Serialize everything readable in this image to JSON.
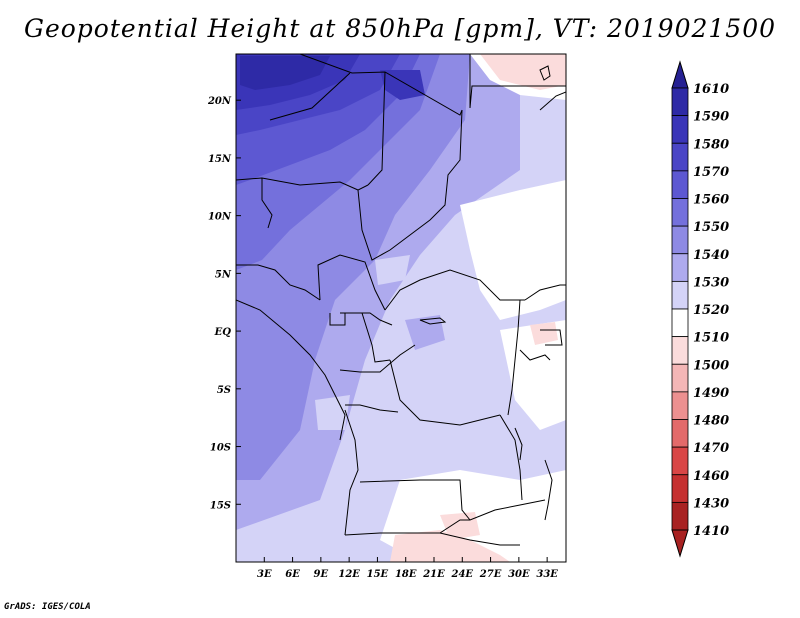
{
  "title": "Geopotential Height at 850hPa [gpm], VT: 2019021500",
  "credit": "GrADS: IGES/COLA",
  "map": {
    "lon_range": [
      0,
      35
    ],
    "lat_range": [
      -20,
      24
    ],
    "x_ticks": [
      {
        "value": 3,
        "label": "3E"
      },
      {
        "value": 6,
        "label": "6E"
      },
      {
        "value": 9,
        "label": "9E"
      },
      {
        "value": 12,
        "label": "12E"
      },
      {
        "value": 15,
        "label": "15E"
      },
      {
        "value": 18,
        "label": "18E"
      },
      {
        "value": 21,
        "label": "21E"
      },
      {
        "value": 24,
        "label": "24E"
      },
      {
        "value": 27,
        "label": "27E"
      },
      {
        "value": 30,
        "label": "30E"
      },
      {
        "value": 33,
        "label": "33E"
      }
    ],
    "y_ticks": [
      {
        "value": 20,
        "label": "20N"
      },
      {
        "value": 15,
        "label": "15N"
      },
      {
        "value": 10,
        "label": "10N"
      },
      {
        "value": 5,
        "label": "5N"
      },
      {
        "value": 0,
        "label": "EQ"
      },
      {
        "value": -5,
        "label": "5S"
      },
      {
        "value": -10,
        "label": "10S"
      },
      {
        "value": -15,
        "label": "15S"
      }
    ]
  },
  "colorbar": {
    "levels": [
      {
        "label": "1610",
        "color": "#262193"
      },
      {
        "label": "1590",
        "color": "#2e2aa6"
      },
      {
        "label": "1580",
        "color": "#3a35b8"
      },
      {
        "label": "1570",
        "color": "#4a45c6"
      },
      {
        "label": "1560",
        "color": "#5d58d2"
      },
      {
        "label": "1550",
        "color": "#7470dc"
      },
      {
        "label": "1540",
        "color": "#8e8ae4"
      },
      {
        "label": "1530",
        "color": "#aeaaee"
      },
      {
        "label": "1520",
        "color": "#d4d3f7"
      },
      {
        "label": "1510",
        "color": "#ffffff"
      },
      {
        "label": "1500",
        "color": "#fbdcdc"
      },
      {
        "label": "1490",
        "color": "#f4b6b6"
      },
      {
        "label": "1480",
        "color": "#ec9090"
      },
      {
        "label": "1470",
        "color": "#e36a6a"
      },
      {
        "label": "1460",
        "color": "#d94646"
      },
      {
        "label": "1430",
        "color": "#c53030"
      },
      {
        "label": "1410",
        "color": "#a82222"
      }
    ]
  }
}
